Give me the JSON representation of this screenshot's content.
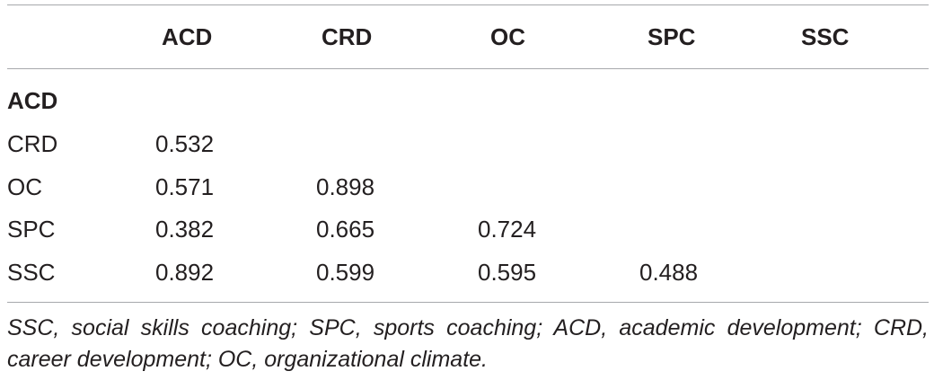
{
  "table": {
    "corner": "",
    "columns": [
      "ACD",
      "CRD",
      "OC",
      "SPC",
      "SSC"
    ],
    "rows": [
      {
        "label": "ACD",
        "bold": true,
        "values": [
          "",
          "",
          "",
          "",
          ""
        ]
      },
      {
        "label": "CRD",
        "bold": false,
        "values": [
          "0.532",
          "",
          "",
          "",
          ""
        ]
      },
      {
        "label": "OC",
        "bold": false,
        "values": [
          "0.571",
          "0.898",
          "",
          "",
          ""
        ]
      },
      {
        "label": "SPC",
        "bold": false,
        "values": [
          "0.382",
          "0.665",
          "0.724",
          "",
          ""
        ]
      },
      {
        "label": "SSC",
        "bold": false,
        "values": [
          "0.892",
          "0.599",
          "0.595",
          "0.488",
          ""
        ]
      }
    ]
  },
  "footnote": "SSC, social skills coaching; SPC, sports coaching; ACD, academic development; CRD, career development; OC, organizational climate."
}
